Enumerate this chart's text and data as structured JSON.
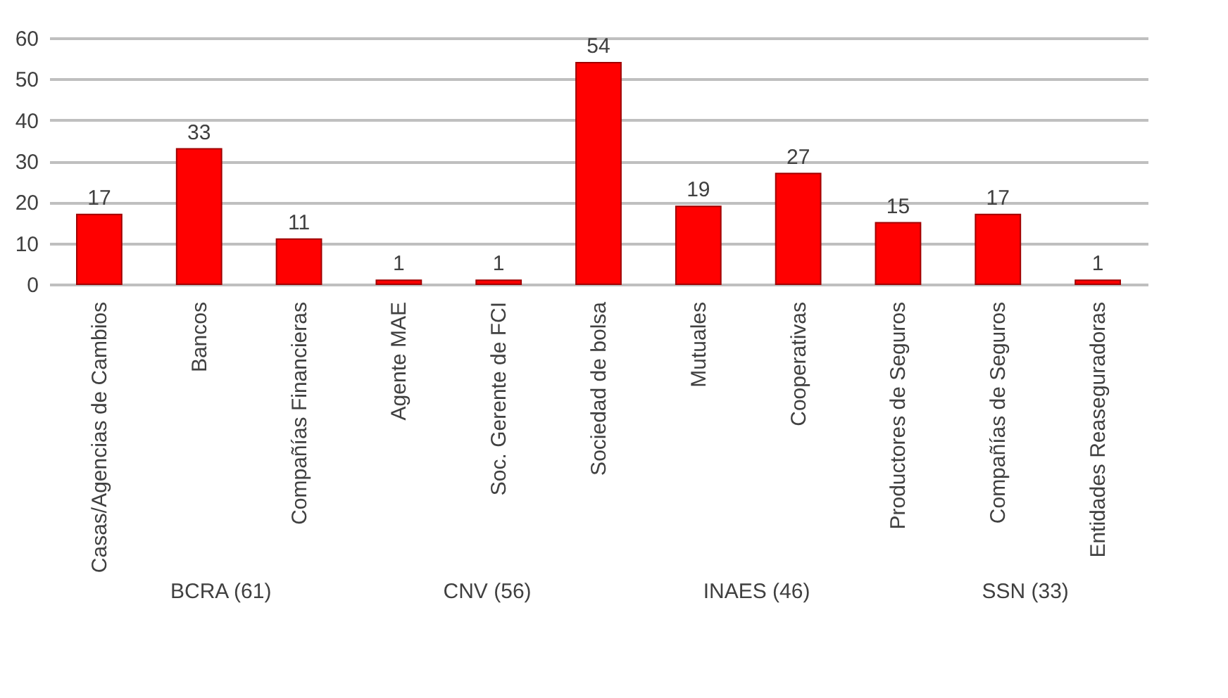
{
  "chart_data": {
    "type": "bar",
    "categories": [
      "Casas/Agencias de Cambios",
      "Bancos",
      "Compañías Financieras",
      "Agente MAE",
      "Soc. Gerente de FCI",
      "Sociedad de bolsa",
      "Mutuales",
      "Cooperativas",
      "Productores de Seguros",
      "Compañías de Seguros",
      "Entidades Reaseguradoras"
    ],
    "values": [
      17,
      33,
      11,
      1,
      1,
      54,
      19,
      27,
      15,
      17,
      1
    ],
    "color": "#ff0000",
    "ylim": [
      0,
      60
    ],
    "yticks": [
      0,
      10,
      20,
      30,
      40,
      50,
      60
    ],
    "grid": "y",
    "data_labels": true,
    "annotations": [
      "BCRA (61)",
      "CNV (56)",
      "INAES (46)",
      "SSN (33)"
    ]
  }
}
